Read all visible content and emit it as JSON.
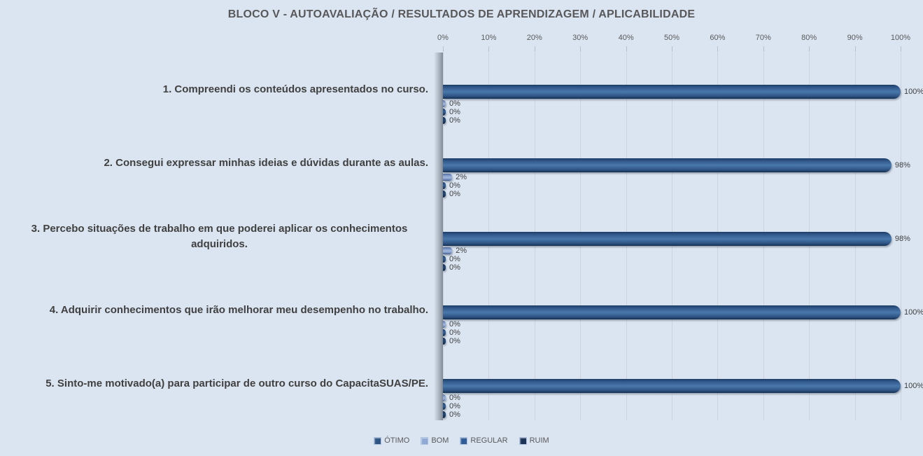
{
  "title": "BLOCO V - AUTOAVALIAÇÃO / RESULTADOS DE APRENDIZAGEM / APLICABILIDADE",
  "chart_data": {
    "type": "bar",
    "orientation": "horizontal",
    "title": "BLOCO V - AUTOAVALIAÇÃO / RESULTADOS DE APRENDIZAGEM / APLICABILIDADE",
    "categories": [
      "1. Compreendi os conteúdos apresentados no curso.",
      "2. Consegui expressar minhas ideias e dúvidas durante as aulas.",
      "3. Percebo situações de trabalho em que poderei aplicar os conhecimentos adquiridos.",
      "4. Adquirir conhecimentos que irão melhorar meu desempenho no trabalho.",
      "5. Sinto-me motivado(a) para participar de outro curso do CapacitaSUAS/PE."
    ],
    "series": [
      {
        "name": "ÓTIMO",
        "color": "#2e5584",
        "values": [
          100,
          98,
          98,
          100,
          100
        ]
      },
      {
        "name": "BOM",
        "color": "#8fa9d4",
        "values": [
          0,
          2,
          2,
          0,
          0
        ]
      },
      {
        "name": "REGULAR",
        "color": "#2f5b97",
        "values": [
          0,
          0,
          0,
          0,
          0
        ]
      },
      {
        "name": "RUIM",
        "color": "#1b3356",
        "values": [
          0,
          0,
          0,
          0,
          0
        ]
      }
    ],
    "value_labels": [
      [
        "100%",
        "0%",
        "0%",
        "0%"
      ],
      [
        "98%",
        "2%",
        "0%",
        "0%"
      ],
      [
        "98%",
        "2%",
        "0%",
        "0%"
      ],
      [
        "100%",
        "0%",
        "0%",
        "0%"
      ],
      [
        "100%",
        "0%",
        "0%",
        "0%"
      ]
    ],
    "x_ticks": [
      "0%",
      "10%",
      "20%",
      "30%",
      "40%",
      "50%",
      "60%",
      "70%",
      "80%",
      "90%",
      "100%"
    ],
    "xlim": [
      0,
      100
    ],
    "grid": "vertical",
    "legend_position": "bottom",
    "background_color": "#dbe5f1"
  }
}
